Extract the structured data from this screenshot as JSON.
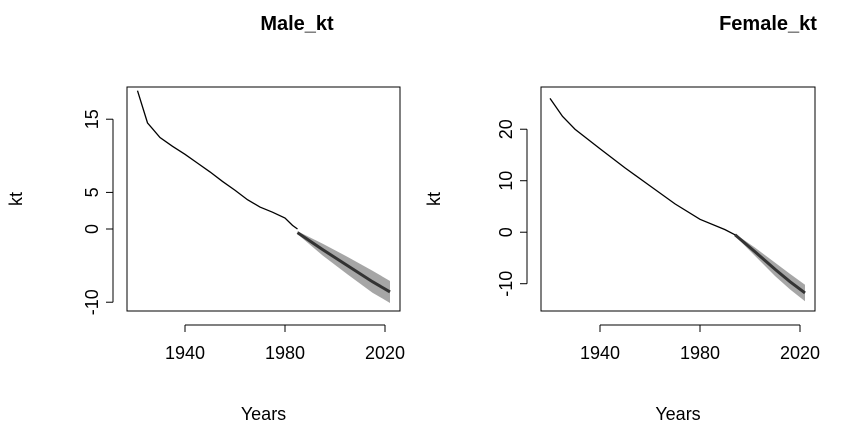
{
  "chart_data": [
    {
      "type": "line",
      "title": "Male_kt",
      "xlabel": "Years",
      "ylabel": "kt",
      "xlim": [
        1916.8,
        2026
      ],
      "ylim": [
        -11.2,
        19.4
      ],
      "xticks": [
        1940,
        1980,
        2020
      ],
      "yticks": [
        -10,
        0,
        5,
        15
      ],
      "color": "#000000",
      "x": [
        1921,
        1925,
        1930,
        1935,
        1940,
        1945,
        1950,
        1955,
        1960,
        1965,
        1970,
        1975,
        1980,
        1983,
        1985
      ],
      "values": [
        18.9,
        14.5,
        12.5,
        11.3,
        10.2,
        9.0,
        7.8,
        6.5,
        5.3,
        4.0,
        3.0,
        2.3,
        1.5,
        0.5,
        0.0
      ],
      "forecast": {
        "color": "#333333",
        "band_color": "#a6a6a6",
        "x": [
          1985,
          1995,
          2005,
          2015,
          2022
        ],
        "values": [
          -0.5,
          -2.8,
          -5.0,
          -7.2,
          -8.6
        ],
        "lower": [
          -0.7,
          -3.6,
          -6.2,
          -8.7,
          -10.1
        ],
        "upper": [
          -0.3,
          -2.0,
          -3.8,
          -5.7,
          -7.1
        ]
      }
    },
    {
      "type": "line",
      "title": "Female_kt",
      "xlabel": "Years",
      "ylabel": "kt",
      "xlim": [
        1916.4,
        2026
      ],
      "ylim": [
        -15.3,
        28.2
      ],
      "xticks": [
        1940,
        1980,
        2020
      ],
      "yticks": [
        -10,
        0,
        10,
        20
      ],
      "color": "#000000",
      "x": [
        1920,
        1925,
        1930,
        1940,
        1950,
        1960,
        1970,
        1980,
        1990,
        1994
      ],
      "values": [
        26.0,
        22.5,
        20.0,
        16.2,
        12.5,
        9.0,
        5.5,
        2.5,
        0.5,
        -0.5
      ],
      "forecast": {
        "color": "#333333",
        "band_color": "#a6a6a6",
        "x": [
          1994,
          2002,
          2010,
          2016,
          2022
        ],
        "values": [
          -0.5,
          -3.8,
          -7.2,
          -9.6,
          -11.8
        ],
        "lower": [
          -0.7,
          -4.6,
          -8.5,
          -11.1,
          -13.4
        ],
        "upper": [
          -0.3,
          -3.0,
          -5.9,
          -8.1,
          -10.2
        ]
      }
    }
  ]
}
